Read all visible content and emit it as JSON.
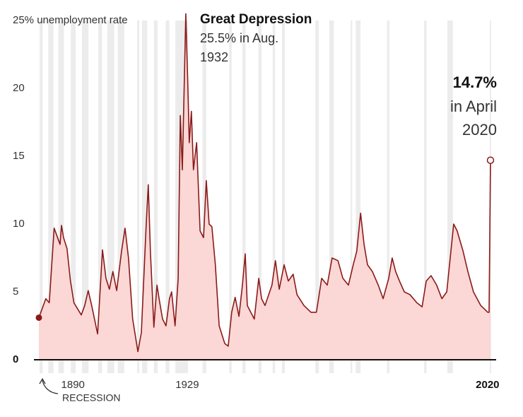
{
  "chart_data": {
    "type": "area-line",
    "annotations": {
      "peak_title": "Great Depression",
      "peak_detail": "25.5% in Aug.",
      "peak_year": "1932",
      "last_value": "14.7%",
      "last_detail": "in April",
      "last_year": "2020"
    },
    "recession_label": "RECESSION",
    "color": "#8b1a1a",
    "fill": "#fbd7d5",
    "recession_color": "#ececec",
    "x": [
      1890.3,
      1892.3,
      1893.3,
      1894.7,
      1896.4,
      1896.8,
      1897.4,
      1898.4,
      1899.4,
      1900.4,
      1902.5,
      1903.5,
      1904.5,
      1905.5,
      1907.2,
      1908.6,
      1909.6,
      1910.6,
      1911.6,
      1912.7,
      1914.1,
      1915.1,
      1916.1,
      1917.3,
      1918.8,
      1919.8,
      1921.2,
      1921.8,
      1922.4,
      1923.4,
      1924.3,
      1924.9,
      1925.9,
      1926.9,
      1927.9,
      1928.5,
      1929.5,
      1930.4,
      1931.0,
      1931.6,
      1932.6,
      1933.2,
      1933.6,
      1934.2,
      1934.8,
      1935.7,
      1936.7,
      1937.7,
      1938.5,
      1939.3,
      1940.1,
      1941.1,
      1942.2,
      1943.8,
      1944.8,
      1945.8,
      1946.8,
      1947.9,
      1948.9,
      1949.7,
      1950.3,
      1951.3,
      1952.3,
      1953.6,
      1954.4,
      1955.4,
      1957.4,
      1958.4,
      1959.5,
      1960.9,
      1962.1,
      1963.5,
      1964.6,
      1966.6,
      1968.6,
      1970.2,
      1971.7,
      1973.3,
      1974.7,
      1976.4,
      1977.8,
      1979.4,
      1980.8,
      1981.8,
      1982.9,
      1983.9,
      1984.9,
      1986.3,
      1988.0,
      1989.4,
      1991.0,
      1992.0,
      1993.0,
      1994.1,
      1995.5,
      1997.1,
      1999.1,
      2000.6,
      2001.8,
      2003.2,
      2004.8,
      2006.3,
      2007.7,
      2008.9,
      2009.7,
      2010.7,
      2012.4,
      2013.8,
      2015.4,
      2017.5,
      2019.5,
      2019.9,
      2020.3
    ],
    "values": [
      3.1,
      4.5,
      4.2,
      9.7,
      8.5,
      9.9,
      9.0,
      8.2,
      5.8,
      4.2,
      3.3,
      4.0,
      5.1,
      4.0,
      1.9,
      8.1,
      6.0,
      5.2,
      6.5,
      5.1,
      8.0,
      9.7,
      7.5,
      3.0,
      0.6,
      2.0,
      10.0,
      12.9,
      8.0,
      2.4,
      5.5,
      4.5,
      3.0,
      2.5,
      4.5,
      5.0,
      2.5,
      6.0,
      18.0,
      14.0,
      25.5,
      20.0,
      16.0,
      18.3,
      14.0,
      16.0,
      9.5,
      9.0,
      13.2,
      10.0,
      9.8,
      7.0,
      2.5,
      1.2,
      1.0,
      3.5,
      4.6,
      3.2,
      5.5,
      7.8,
      4.0,
      3.5,
      3.0,
      6.0,
      4.5,
      4.0,
      5.5,
      7.3,
      5.2,
      7.0,
      5.8,
      6.3,
      4.8,
      4.0,
      3.5,
      3.5,
      6.0,
      5.5,
      7.5,
      7.3,
      6.0,
      5.5,
      7.0,
      8.0,
      10.8,
      8.5,
      7.0,
      6.5,
      5.5,
      4.5,
      6.0,
      7.5,
      6.5,
      5.8,
      5.0,
      4.8,
      4.2,
      3.9,
      5.8,
      6.2,
      5.5,
      4.5,
      5.0,
      8.0,
      10.0,
      9.5,
      8.0,
      6.5,
      5.0,
      4.0,
      3.5,
      3.5,
      14.7
    ],
    "recessions": [
      [
        1890.5,
        1891.4
      ],
      [
        1893.0,
        1894.5
      ],
      [
        1895.9,
        1897.5
      ],
      [
        1899.5,
        1900.9
      ],
      [
        1902.7,
        1904.6
      ],
      [
        1907.4,
        1908.5
      ],
      [
        1910.0,
        1912.0
      ],
      [
        1913.0,
        1914.9
      ],
      [
        1918.6,
        1919.2
      ],
      [
        1920.0,
        1921.5
      ],
      [
        1923.4,
        1924.5
      ],
      [
        1926.8,
        1927.9
      ],
      [
        1929.6,
        1933.2
      ],
      [
        1937.4,
        1938.5
      ],
      [
        1945.1,
        1945.8
      ],
      [
        1948.9,
        1949.8
      ],
      [
        1953.5,
        1954.4
      ],
      [
        1957.6,
        1958.3
      ],
      [
        1960.3,
        1961.1
      ],
      [
        1969.9,
        1970.9
      ],
      [
        1973.9,
        1975.2
      ],
      [
        1980.0,
        1980.5
      ],
      [
        1981.5,
        1982.9
      ],
      [
        1990.5,
        1991.2
      ],
      [
        2001.2,
        2001.9
      ],
      [
        2007.9,
        2009.5
      ],
      [
        2020.1,
        2020.3
      ]
    ],
    "xlim": [
      1890.3,
      2020.3
    ],
    "xticks": [
      1890,
      1929,
      2020
    ],
    "ylim": [
      0,
      25
    ],
    "yticks": [
      0,
      5,
      10,
      15,
      20,
      {
        "value": 25,
        "label": "25% unemployment rate"
      }
    ],
    "grid": false
  }
}
